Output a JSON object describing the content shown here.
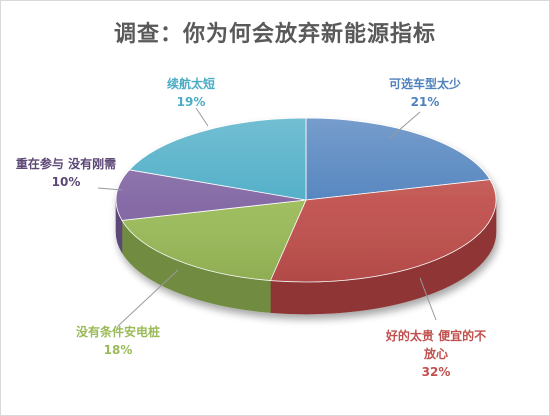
{
  "chart_data": {
    "type": "pie",
    "title": "调查：你为何会放弃新能源指标",
    "slices": [
      {
        "label": "可选车型太少",
        "value": 21,
        "display": "21%",
        "color": "#4f81bd",
        "side": "#3a6494",
        "label_color": "#4f81bd"
      },
      {
        "label": "好的太贵 便宜的不放心",
        "label_lines": [
          "好的太贵 便宜的不",
          "放心"
        ],
        "value": 32,
        "display": "32%",
        "color": "#c0504d",
        "side": "#8f3634",
        "label_color": "#c0504d"
      },
      {
        "label": "没有条件安电桩",
        "value": 18,
        "display": "18%",
        "color": "#9bbb59",
        "side": "#718c3f",
        "label_color": "#9bbb59"
      },
      {
        "label": "重在参与 没有刚需",
        "value": 10,
        "display": "10%",
        "color": "#8064a2",
        "side": "#5c4776",
        "label_color": "#5c4776"
      },
      {
        "label": "续航太短",
        "value": 19,
        "display": "19%",
        "color": "#4bacc6",
        "side": "#3289a0",
        "label_color": "#4bacc6"
      }
    ]
  }
}
